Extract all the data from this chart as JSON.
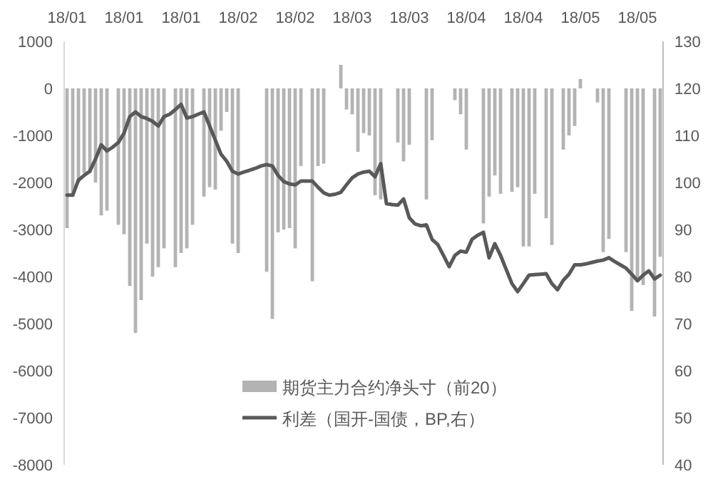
{
  "chart_data": {
    "type": "bar",
    "categories": [
      "18/01",
      null,
      null,
      null,
      null,
      null,
      null,
      null,
      null,
      null,
      "18/01",
      null,
      null,
      null,
      null,
      null,
      null,
      null,
      null,
      null,
      "18/01",
      null,
      null,
      null,
      null,
      null,
      null,
      null,
      null,
      null,
      "18/02",
      null,
      null,
      null,
      null,
      null,
      null,
      null,
      null,
      null,
      "18/02",
      null,
      null,
      null,
      null,
      null,
      null,
      null,
      null,
      null,
      "18/03",
      null,
      null,
      null,
      null,
      null,
      null,
      null,
      null,
      null,
      "18/03",
      null,
      null,
      null,
      null,
      null,
      null,
      null,
      null,
      null,
      "18/04",
      null,
      null,
      null,
      null,
      null,
      null,
      null,
      null,
      null,
      "18/04",
      null,
      null,
      null,
      null,
      null,
      null,
      null,
      null,
      null,
      "18/05",
      null,
      null,
      null,
      null,
      null,
      null,
      null,
      null,
      null,
      "18/05",
      null,
      null,
      null,
      null
    ],
    "series": [
      {
        "name": "期货主力合约净头寸（前20）",
        "color": "#b3b3b3",
        "values": [
          -2970,
          -2300,
          -2000,
          -1800,
          -1800,
          -2000,
          -2700,
          -2600,
          null,
          -2900,
          -3100,
          -4200,
          -5200,
          -4500,
          -3300,
          -4000,
          -3800,
          -3400,
          null,
          -3800,
          -3500,
          -3400,
          -2900,
          null,
          -2300,
          -2100,
          -2150,
          -900,
          -500,
          -3300,
          -3500,
          null,
          null,
          null,
          null,
          -3900,
          -4900,
          -3060,
          -3000,
          -2970,
          -3400,
          -1650,
          null,
          -4100,
          -1650,
          -1600,
          null,
          null,
          500,
          -450,
          -550,
          -1350,
          -950,
          -1000,
          -2270,
          -2360,
          null,
          null,
          -1150,
          -1550,
          -1200,
          null,
          null,
          -2360,
          -1100,
          null,
          null,
          null,
          -250,
          -550,
          -1300,
          null,
          null,
          -2870,
          -2300,
          -1850,
          -2240,
          null,
          -2200,
          -2100,
          -3360,
          -3360,
          -2240,
          null,
          -2760,
          -3330,
          null,
          -1300,
          -1000,
          -800,
          200,
          null,
          null,
          -300,
          -3480,
          -3200,
          null,
          null,
          -3480,
          -4730,
          -4090,
          -4180,
          null,
          -4850,
          -3580
        ]
      },
      {
        "name": "利差（国开-国债，BP,右）",
        "type": "line",
        "axis": "y2",
        "color": "#595959",
        "values": [
          97.3,
          97.3,
          100.5,
          101.5,
          102.4,
          105,
          108,
          106.7,
          107.5,
          108.5,
          110.5,
          114,
          115,
          114,
          113.6,
          113,
          112,
          114,
          114.5,
          115.5,
          116.6,
          113.7,
          114,
          114.5,
          115,
          112,
          109,
          106,
          104.5,
          102.4,
          101.8,
          102.2,
          102.6,
          103,
          103.5,
          103.8,
          103.5,
          101.5,
          100.2,
          99.7,
          99.5,
          100.3,
          100.3,
          100.3,
          99,
          97.8,
          97.3,
          97.5,
          97.9,
          99.5,
          101,
          101.8,
          102.2,
          102.4,
          101.2,
          104,
          95.5,
          95.3,
          95.2,
          96.5,
          92.5,
          91.2,
          90.8,
          91,
          87.9,
          86.8,
          84.5,
          82.1,
          84.5,
          85.4,
          85.2,
          87.9,
          88.8,
          89.4,
          84,
          87,
          84.5,
          81.5,
          78.5,
          76.8,
          78.5,
          80.3,
          80.4,
          80.5,
          80.6,
          78.5,
          77.2,
          79.2,
          80.5,
          82.5,
          82.5,
          82.7,
          83,
          83.3,
          83.5,
          84,
          83.2,
          82.5,
          81.8,
          80.5,
          79.1,
          80.3,
          81.2,
          79.5,
          80.3
        ]
      }
    ],
    "ylim": [
      -8000,
      1000
    ],
    "yticks": [
      -8000,
      -7000,
      -6000,
      -5000,
      -4000,
      -3000,
      -2000,
      -1000,
      0,
      1000
    ],
    "y2lim": [
      40,
      130
    ],
    "y2ticks": [
      40,
      50,
      60,
      70,
      80,
      90,
      100,
      110,
      120,
      130
    ],
    "legend": "bottom",
    "grid": false
  }
}
